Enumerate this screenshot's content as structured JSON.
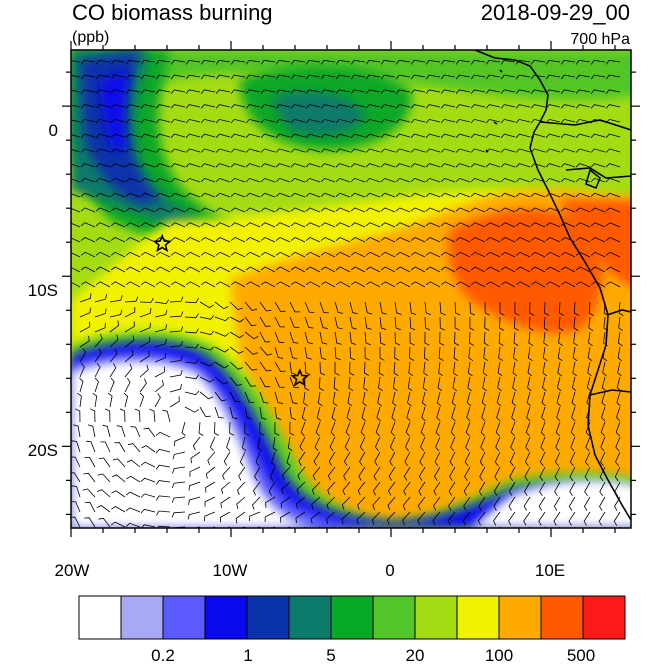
{
  "header": {
    "title": "CO biomass burning",
    "units": "(ppb)",
    "datetime": "2018-09-29_00",
    "level": "700 hPa"
  },
  "axes": {
    "lat_labels": [
      "0",
      "10S",
      "20S"
    ],
    "lon_labels": [
      "20W",
      "10W",
      "0",
      "10E"
    ]
  },
  "colorbar": {
    "colors": [
      "#ffffff",
      "#a8a8f5",
      "#5a5aff",
      "#0a0aee",
      "#0a32aa",
      "#0c7a6a",
      "#08a828",
      "#52c628",
      "#a4dc14",
      "#f2f200",
      "#ffaa00",
      "#ff5a00",
      "#ff1a1a"
    ],
    "tick_labels": [
      "0.2",
      "1",
      "5",
      "20",
      "100",
      "500"
    ]
  },
  "markers": [
    {
      "name": "star-marker-west",
      "lon": -14.3,
      "lat": -8.1
    },
    {
      "name": "star-marker-south",
      "lon": -5.7,
      "lat": -16.0
    }
  ]
}
